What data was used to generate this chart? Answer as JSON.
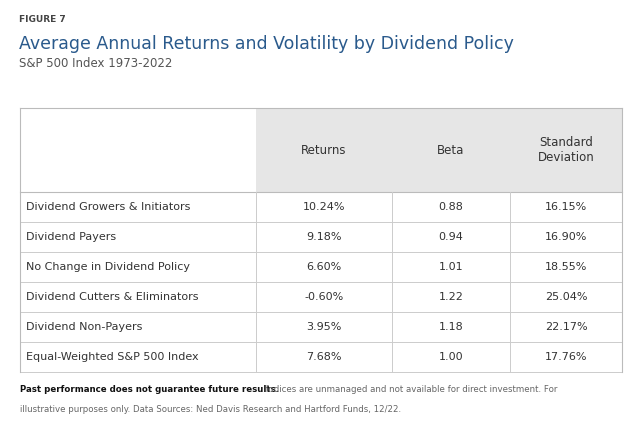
{
  "figure_label": "FIGURE 7",
  "title": "Average Annual Returns and Volatility by Dividend Policy",
  "subtitle": "S&P 500 Index 1973-2022",
  "col_headers": [
    "Returns",
    "Beta",
    "Standard\nDeviation"
  ],
  "rows": [
    [
      "Dividend Growers & Initiators",
      "10.24%",
      "0.88",
      "16.15%"
    ],
    [
      "Dividend Payers",
      "9.18%",
      "0.94",
      "16.90%"
    ],
    [
      "No Change in Dividend Policy",
      "6.60%",
      "1.01",
      "18.55%"
    ],
    [
      "Dividend Cutters & Eliminators",
      "-0.60%",
      "1.22",
      "25.04%"
    ],
    [
      "Dividend Non-Payers",
      "3.95%",
      "1.18",
      "22.17%"
    ],
    [
      "Equal-Weighted S&P 500 Index",
      "7.68%",
      "1.00",
      "17.76%"
    ]
  ],
  "footer_bold": "Past performance does not guarantee future results.",
  "footer_rest_line1": " Indices are unmanaged and not available for direct investment. For",
  "footer_line2": "illustrative purposes only. Data Sources: Ned Davis Research and Hartford Funds, 12/22.",
  "header_bg": "#e6e6e6",
  "row_line_color": "#cccccc",
  "table_border_color": "#bbbbbb",
  "bg_color": "#ffffff",
  "figure_label_color": "#444444",
  "title_color": "#2a5a8c",
  "subtitle_color": "#555555",
  "header_text_color": "#333333",
  "row_text_color": "#333333",
  "footer_text_color": "#666666",
  "footer_bold_color": "#111111"
}
